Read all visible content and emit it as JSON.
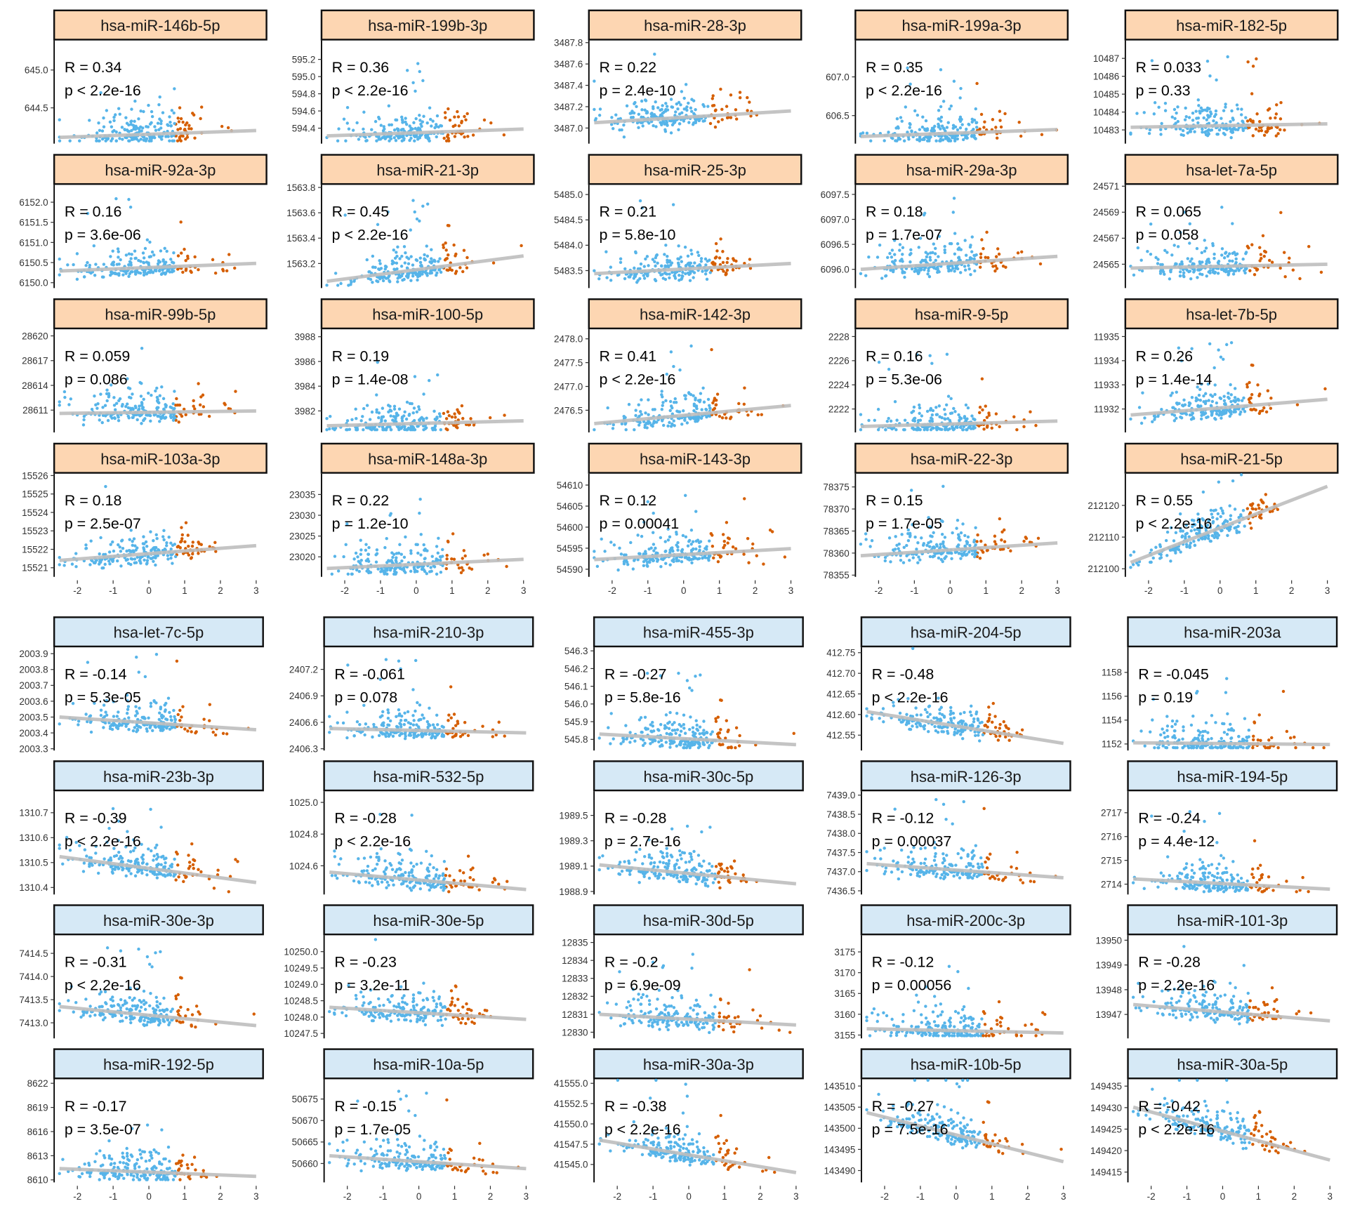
{
  "colors": {
    "low": "#56B4E9",
    "high": "#D55E00",
    "fit": "#BEBEBE",
    "strip_pos": "#FDD6B2",
    "strip_neg": "#D6E9F6"
  },
  "chart_data": {
    "type": "scatter",
    "xticks": [
      "-2",
      "-1",
      "0",
      "1",
      "2",
      "3"
    ],
    "xlim": [
      -2.5,
      3.1
    ],
    "split_x": 0.75,
    "panels": [
      {
        "title": "hsa-miR-146b-5p",
        "group": "pos",
        "R": "R = 0.34",
        "p": "p < 2.2e-16",
        "yticks": [
          "645.0",
          "644.5"
        ],
        "ylim": [
          644.05,
          645.39
        ],
        "fit": [
          644.11,
          644.2
        ]
      },
      {
        "title": "hsa-miR-199b-3p",
        "group": "pos",
        "R": "R = 0.36",
        "p": "p < 2.2e-16",
        "yticks": [
          "595.2",
          "595.0",
          "594.8",
          "594.6",
          "594.4"
        ],
        "ylim": [
          594.24,
          595.42
        ],
        "fit": [
          594.31,
          594.39
        ]
      },
      {
        "title": "hsa-miR-28-3p",
        "group": "pos",
        "R": "R = 0.22",
        "p": "p = 2.4e-10",
        "yticks": [
          "3487.8",
          "3487.6",
          "3487.4",
          "3487.2",
          "3487.0"
        ],
        "ylim": [
          3486.87,
          3487.82
        ],
        "fit": [
          3487.05,
          3487.16
        ]
      },
      {
        "title": "hsa-miR-199a-3p",
        "group": "pos",
        "R": "R = 0.35",
        "p": "p < 2.2e-16",
        "yticks": [
          "607.0",
          "606.5"
        ],
        "ylim": [
          606.16,
          607.47
        ],
        "fit": [
          606.23,
          606.32
        ]
      },
      {
        "title": "hsa-miR-182-5p",
        "group": "pos",
        "R": "R = 0.033",
        "p": "p = 0.33",
        "yticks": [
          "10487",
          "10486",
          "10485",
          "10484",
          "10483"
        ],
        "ylim": [
          10482.33,
          10488.0
        ],
        "fit": [
          10483.15,
          10483.34
        ]
      },
      {
        "title": "hsa-miR-92a-3p",
        "group": "pos",
        "R": "R = 0.16",
        "p": "p = 3.6e-06",
        "yticks": [
          "6152.0",
          "6151.5",
          "6151.0",
          "6150.5",
          "6150.0"
        ],
        "ylim": [
          6149.91,
          6152.43
        ],
        "fit": [
          6150.29,
          6150.48
        ]
      },
      {
        "title": "hsa-miR-21-3p",
        "group": "pos",
        "R": "R = 0.45",
        "p": "p < 2.2e-16",
        "yticks": [
          "1563.8",
          "1563.6",
          "1563.4",
          "1563.2"
        ],
        "ylim": [
          1563.02,
          1563.82
        ],
        "fit": [
          1563.06,
          1563.26
        ]
      },
      {
        "title": "hsa-miR-25-3p",
        "group": "pos",
        "R": "R = 0.21",
        "p": "p = 5.8e-10",
        "yticks": [
          "5485.0",
          "5484.5",
          "5484.0",
          "5483.5"
        ],
        "ylim": [
          5483.19,
          5485.19
        ],
        "fit": [
          5483.44,
          5483.64
        ]
      },
      {
        "title": "hsa-miR-29a-3p",
        "group": "pos",
        "R": "R = 0.18",
        "p": "p = 1.7e-07",
        "yticks": [
          "6097.5",
          "6097.0",
          "6096.5",
          "6096.0"
        ],
        "ylim": [
          6095.66,
          6097.69
        ],
        "fit": [
          6096.0,
          6096.26
        ]
      },
      {
        "title": "hsa-let-7a-5p",
        "group": "pos",
        "R": "R = 0.065",
        "p": "p = 0.058",
        "yticks": [
          "24571",
          "24569",
          "24567",
          "24565"
        ],
        "ylim": [
          24563.3,
          24571.1
        ],
        "fit": [
          24564.7,
          24565.0
        ]
      },
      {
        "title": "hsa-miR-99b-5p",
        "group": "pos",
        "R": "R = 0.059",
        "p": "p = 0.086",
        "yticks": [
          "28620",
          "28617",
          "28614",
          "28611"
        ],
        "ylim": [
          28608.5,
          28620.8
        ],
        "fit": [
          28610.6,
          28610.9
        ]
      },
      {
        "title": "hsa-miR-100-5p",
        "group": "pos",
        "R": "R = 0.19",
        "p": "p = 1.4e-08",
        "yticks": [
          "3988",
          "3986",
          "3984",
          "3982"
        ],
        "ylim": [
          3980.4,
          3988.6
        ],
        "fit": [
          3980.8,
          3981.2
        ]
      },
      {
        "title": "hsa-miR-142-3p",
        "group": "pos",
        "R": "R = 0.41",
        "p": "p < 2.2e-16",
        "yticks": [
          "2478.0",
          "2477.5",
          "2477.0",
          "2476.5"
        ],
        "ylim": [
          2476.07,
          2478.2
        ],
        "fit": [
          2476.22,
          2476.6
        ]
      },
      {
        "title": "hsa-miR-9-5p",
        "group": "pos",
        "R": "R = 0.16",
        "p": "p = 5.3e-06",
        "yticks": [
          "2228",
          "2226",
          "2224",
          "2222"
        ],
        "ylim": [
          2220.2,
          2228.6
        ],
        "fit": [
          2220.55,
          2221.0
        ]
      },
      {
        "title": "hsa-let-7b-5p",
        "group": "pos",
        "R": "R = 0.26",
        "p": "p = 1.4e-14",
        "yticks": [
          "11935",
          "11934",
          "11933",
          "11932"
        ],
        "ylim": [
          11931.1,
          11935.3
        ],
        "fit": [
          11931.75,
          11932.4
        ]
      },
      {
        "title": "hsa-miR-103a-3p",
        "group": "pos",
        "R": "R = 0.18",
        "p": "p = 2.5e-07",
        "yticks": [
          "15526",
          "15525",
          "15524",
          "15523",
          "15522",
          "15521"
        ],
        "ylim": [
          15520.6,
          15526.1
        ],
        "fit": [
          15521.4,
          15522.2
        ]
      },
      {
        "title": "hsa-miR-148a-3p",
        "group": "pos",
        "R": "R = 0.22",
        "p": "p = 1.2e-10",
        "yticks": [
          "23035",
          "23030",
          "23025",
          "23020"
        ],
        "ylim": [
          23015.6,
          23040
        ],
        "fit": [
          23017.2,
          23019.4
        ]
      },
      {
        "title": "hsa-miR-143-3p",
        "group": "pos",
        "R": "R = 0.12",
        "p": "p = 0.00041",
        "yticks": [
          "54610",
          "54605",
          "54600",
          "54595",
          "54590"
        ],
        "ylim": [
          54588.6,
          54612.7
        ],
        "fit": [
          54592.3,
          54594.9
        ]
      },
      {
        "title": "hsa-miR-22-3p",
        "group": "pos",
        "R": "R = 0.15",
        "p": "p = 1.7e-05",
        "yticks": [
          "78375",
          "78370",
          "78365",
          "78360",
          "78355"
        ],
        "ylim": [
          78355,
          78378
        ],
        "fit": [
          78359.4,
          78362.3
        ]
      },
      {
        "title": "hsa-miR-21-5p",
        "group": "pos",
        "R": "R = 0.55",
        "p": "p < 2.2e-16",
        "yticks": [
          "212120",
          "212110",
          "212100"
        ],
        "ylim": [
          212098,
          212130
        ],
        "fit": [
          212102,
          212126
        ]
      },
      {
        "title": "hsa-let-7c-5p",
        "group": "neg",
        "R": "R = -0.14",
        "p": "p = 5.3e-05",
        "yticks": [
          "2003.9",
          "2003.8",
          "2003.7",
          "2003.6",
          "2003.5",
          "2003.4",
          "2003.3"
        ],
        "ylim": [
          2003.3,
          2003.94
        ],
        "fit": [
          2003.5,
          2003.42
        ]
      },
      {
        "title": "hsa-miR-210-3p",
        "group": "neg",
        "R": "R = -0.061",
        "p": "p = 0.078",
        "yticks": [
          "2407.2",
          "2406.9",
          "2406.6",
          "2406.3"
        ],
        "ylim": [
          2406.3,
          2407.45
        ],
        "fit": [
          2406.53,
          2406.48
        ]
      },
      {
        "title": "hsa-miR-455-3p",
        "group": "neg",
        "R": "R = -0.27",
        "p": "p = 5.8e-16",
        "yticks": [
          "546.3",
          "546.2",
          "546.1",
          "546.0",
          "545.9",
          "545.8"
        ],
        "ylim": [
          545.747,
          546.32
        ],
        "fit": [
          545.83,
          545.77
        ]
      },
      {
        "title": "hsa-miR-204-5p",
        "group": "neg",
        "R": "R = -0.48",
        "p": "p < 2.2e-16",
        "yticks": [
          "412.75",
          "412.70",
          "412.65",
          "412.60",
          "412.55"
        ],
        "ylim": [
          412.517,
          412.763
        ],
        "fit": [
          412.607,
          412.53
        ]
      },
      {
        "title": "hsa-miR-203a",
        "group": "neg",
        "R": "R = -0.045",
        "p": "p = 0.19",
        "yticks": [
          "1158",
          "1156",
          "1154",
          "1152"
        ],
        "ylim": [
          1151.6,
          1160.1
        ],
        "fit": [
          1152.1,
          1151.96
        ]
      },
      {
        "title": "hsa-miR-23b-3p",
        "group": "neg",
        "R": "R = -0.39",
        "p": "p < 2.2e-16",
        "yticks": [
          "1310.7",
          "1310.6",
          "1310.5",
          "1310.4"
        ],
        "ylim": [
          1310.379,
          1310.786
        ],
        "fit": [
          1310.524,
          1310.42
        ]
      },
      {
        "title": "hsa-miR-532-5p",
        "group": "neg",
        "R": "R = -0.28",
        "p": "p < 2.2e-16",
        "yticks": [
          "1025.0",
          "1024.8",
          "1024.6"
        ],
        "ylim": [
          1024.43,
          1025.07
        ],
        "fit": [
          1024.56,
          1024.45
        ]
      },
      {
        "title": "hsa-miR-30c-5p",
        "group": "neg",
        "R": "R = -0.28",
        "p": "p = 2.7e-16",
        "yticks": [
          "1989.5",
          "1989.3",
          "1989.1",
          "1988.9"
        ],
        "ylim": [
          1988.89,
          1989.69
        ],
        "fit": [
          1989.11,
          1988.96
        ]
      },
      {
        "title": "hsa-miR-126-3p",
        "group": "neg",
        "R": "R = -0.12",
        "p": "p = 0.00037",
        "yticks": [
          "7439.0",
          "7438.5",
          "7438.0",
          "7437.5",
          "7437.0",
          "7436.5"
        ],
        "ylim": [
          7436.45,
          7439.1
        ],
        "fit": [
          7437.21,
          7436.84
        ]
      },
      {
        "title": "hsa-miR-194-5p",
        "group": "neg",
        "R": "R = -0.24",
        "p": "p = 4.4e-12",
        "yticks": [
          "2717",
          "2716",
          "2715",
          "2714"
        ],
        "ylim": [
          2713.64,
          2717.9
        ],
        "fit": [
          2714.22,
          2713.79
        ]
      },
      {
        "title": "hsa-miR-30e-3p",
        "group": "neg",
        "R": "R = -0.31",
        "p": "p < 2.2e-16",
        "yticks": [
          "7414.5",
          "7414.0",
          "7413.5",
          "7413.0"
        ],
        "ylim": [
          7412.7,
          7414.89
        ],
        "fit": [
          7413.35,
          7412.94
        ]
      },
      {
        "title": "hsa-miR-30e-5p",
        "group": "neg",
        "R": "R = -0.23",
        "p": "p = 3.2e-11",
        "yticks": [
          "10250.0",
          "10249.5",
          "10249.0",
          "10248.5",
          "10248.0",
          "10247.5"
        ],
        "ylim": [
          10247.4,
          10250.5
        ],
        "fit": [
          10248.3,
          10247.93
        ]
      },
      {
        "title": "hsa-miR-30d-5p",
        "group": "neg",
        "R": "R = -0.2",
        "p": "p = 6.9e-09",
        "yticks": [
          "12835",
          "12834",
          "12833",
          "12832",
          "12831",
          "12830"
        ],
        "ylim": [
          12829.75,
          12835.4
        ],
        "fit": [
          12831.0,
          12830.4
        ]
      },
      {
        "title": "hsa-miR-200c-3p",
        "group": "neg",
        "R": "R = -0.12",
        "p": "p = 0.00056",
        "yticks": [
          "3175",
          "3170",
          "3165",
          "3160",
          "3155"
        ],
        "ylim": [
          3154.6,
          3179
        ],
        "fit": [
          3156.5,
          3155.5
        ]
      },
      {
        "title": "hsa-miR-101-3p",
        "group": "neg",
        "R": "R = -0.28",
        "p": "p = 2.2e-16",
        "yticks": [
          "13950",
          "13949",
          "13948",
          "13947"
        ],
        "ylim": [
          13946.1,
          13950.2
        ],
        "fit": [
          13947.4,
          13946.74
        ]
      },
      {
        "title": "hsa-miR-192-5p",
        "group": "neg",
        "R": "R = -0.17",
        "p": "p = 3.5e-07",
        "yticks": [
          "8622",
          "8619",
          "8616",
          "8613",
          "8610"
        ],
        "ylim": [
          8609.9,
          8622.5
        ],
        "fit": [
          8611.4,
          8610.44
        ]
      },
      {
        "title": "hsa-miR-10a-5p",
        "group": "neg",
        "R": "R = -0.15",
        "p": "p = 1.7e-05",
        "yticks": [
          "50675",
          "50670",
          "50665",
          "50660"
        ],
        "ylim": [
          50656,
          50679.6
        ],
        "fit": [
          50661.8,
          50658.8
        ]
      },
      {
        "title": "hsa-miR-30a-3p",
        "group": "neg",
        "R": "R = -0.38",
        "p": "p < 2.2e-16",
        "yticks": [
          "41555.0",
          "41552.5",
          "41550.0",
          "41547.5",
          "41545.0"
        ],
        "ylim": [
          41543.0,
          41555.5
        ],
        "fit": [
          41548.0,
          41544.0
        ]
      },
      {
        "title": "hsa-miR-10b-5p",
        "group": "neg",
        "R": "R = -0.27",
        "p": "p = 7.5e-16",
        "yticks": [
          "143510",
          "143505",
          "143500",
          "143495",
          "143490"
        ],
        "ylim": [
          143487.6,
          143511.6
        ],
        "fit": [
          143503.7,
          143492.1
        ]
      },
      {
        "title": "hsa-miR-30a-5p",
        "group": "neg",
        "R": "R = -0.42",
        "p": "p < 2.2e-16",
        "yticks": [
          "149435",
          "149430",
          "149425",
          "149420",
          "149415"
        ],
        "ylim": [
          149413,
          149436.6
        ],
        "fit": [
          149430.1,
          149417.8
        ]
      }
    ]
  }
}
